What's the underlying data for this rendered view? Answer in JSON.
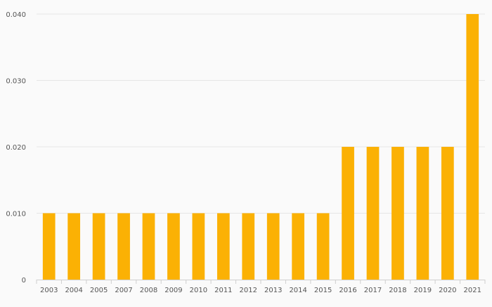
{
  "colors": {
    "bar": "#fbb104",
    "grid": "#e6e6e6",
    "axis": "#cfcfcf",
    "text": "#555555",
    "background": "#fafafa"
  },
  "chart_data": {
    "type": "bar",
    "categories": [
      "2003",
      "2004",
      "2005",
      "2007",
      "2008",
      "2009",
      "2010",
      "2011",
      "2012",
      "2013",
      "2014",
      "2015",
      "2016",
      "2017",
      "2018",
      "2019",
      "2020",
      "2021"
    ],
    "values": [
      0.01,
      0.01,
      0.01,
      0.01,
      0.01,
      0.01,
      0.01,
      0.01,
      0.01,
      0.01,
      0.01,
      0.01,
      0.02,
      0.02,
      0.02,
      0.02,
      0.02,
      0.04
    ],
    "title": "",
    "xlabel": "",
    "ylabel": "",
    "ylim": [
      0,
      0.04
    ],
    "yticks": [
      0,
      0.01,
      0.02,
      0.03,
      0.04
    ],
    "ytick_labels": [
      "0",
      "0.010",
      "0.020",
      "0.030",
      "0.040"
    ],
    "grid": true,
    "legend": "none"
  }
}
